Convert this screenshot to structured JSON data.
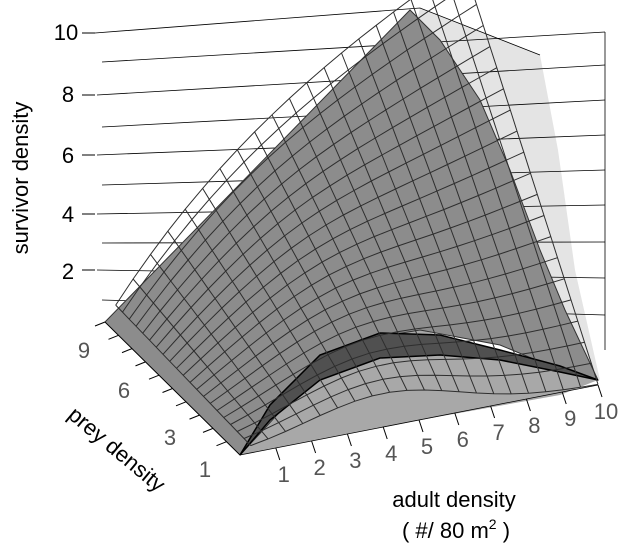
{
  "chart_data": {
    "type": "surface3d",
    "title": "",
    "zlabel": "survivor density",
    "ylabel": "prey density",
    "xlabel_line1": "adult density",
    "xlabel_line2_pre": "( #/ 80 m",
    "xlabel_line2_sup": "2",
    "xlabel_line2_post": " )",
    "z_ticks": [
      "2",
      "4",
      "6",
      "8",
      "10"
    ],
    "z_range": [
      0,
      10
    ],
    "y_ticks": [
      "1",
      "3",
      "6",
      "9"
    ],
    "y_range": [
      0,
      10
    ],
    "x_ticks": [
      "1",
      "2",
      "3",
      "4",
      "5",
      "6",
      "7",
      "8",
      "9",
      "10"
    ],
    "x_range": [
      0,
      10
    ],
    "grid": true,
    "series": [
      {
        "surface": "survivor density vs adult density and prey density",
        "peak_value": 10.2,
        "peak_at": {
          "adult_density": 10,
          "prey_density": 10
        },
        "low_prey_ridge_peak": 1.1,
        "low_prey_ridge_at_adult_density": 4
      }
    ],
    "colors": {
      "surface_light": "#8e8e8e",
      "surface_dark": "#4a4a4a",
      "shadow": "#b0b0b0",
      "back_shadow": "#e4e4e4",
      "grid_line": "#000000"
    }
  }
}
